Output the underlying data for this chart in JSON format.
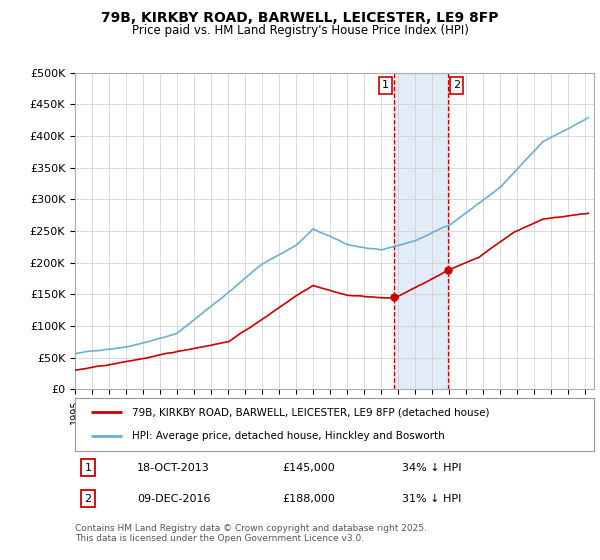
{
  "title": "79B, KIRKBY ROAD, BARWELL, LEICESTER, LE9 8FP",
  "subtitle": "Price paid vs. HM Land Registry's House Price Index (HPI)",
  "ylim": [
    0,
    500000
  ],
  "yticks": [
    0,
    50000,
    100000,
    150000,
    200000,
    250000,
    300000,
    350000,
    400000,
    450000,
    500000
  ],
  "ytick_labels": [
    "£0",
    "£50K",
    "£100K",
    "£150K",
    "£200K",
    "£250K",
    "£300K",
    "£350K",
    "£400K",
    "£450K",
    "£500K"
  ],
  "hpi_color": "#6baed6",
  "price_color": "#cc0000",
  "sale1_date": "18-OCT-2013",
  "sale1_price": 145000,
  "sale1_pct": "34%",
  "sale2_date": "09-DEC-2016",
  "sale2_price": 188000,
  "sale2_pct": "31%",
  "legend_label1": "79B, KIRKBY ROAD, BARWELL, LEICESTER, LE9 8FP (detached house)",
  "legend_label2": "HPI: Average price, detached house, Hinckley and Bosworth",
  "footnote": "Contains HM Land Registry data © Crown copyright and database right 2025.\nThis data is licensed under the Open Government Licence v3.0.",
  "bg_color": "#ffffff",
  "grid_color": "#cccccc",
  "shade_color": "#dce9f5",
  "hpi_anchors_x": [
    0,
    36,
    72,
    108,
    132,
    156,
    168,
    192,
    216,
    240,
    264,
    300,
    330,
    363
  ],
  "hpi_anchors_y": [
    56000,
    68000,
    90000,
    155000,
    200000,
    230000,
    255000,
    230000,
    220000,
    235000,
    260000,
    320000,
    390000,
    430000
  ],
  "red_anchors_x": [
    0,
    24,
    48,
    72,
    108,
    132,
    156,
    168,
    192,
    225,
    263,
    285,
    310,
    330,
    363
  ],
  "red_anchors_y": [
    30000,
    38000,
    48000,
    58000,
    75000,
    110000,
    148000,
    165000,
    150000,
    145000,
    188000,
    210000,
    250000,
    270000,
    280000
  ],
  "sale1_month": 225,
  "sale2_month": 263,
  "start_year": 1995,
  "months_total": 363
}
